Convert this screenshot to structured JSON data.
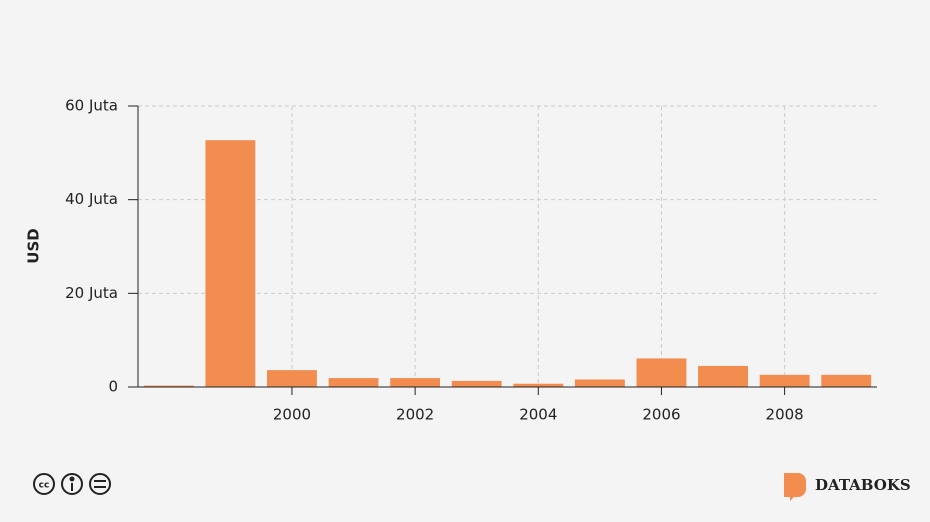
{
  "chart_data": {
    "type": "bar",
    "ylabel": "USD",
    "x": [
      1998,
      1999,
      2000,
      2001,
      2002,
      2003,
      2004,
      2005,
      2006,
      2007,
      2008,
      2009
    ],
    "values": [
      0.3,
      52.7,
      3.6,
      1.9,
      1.9,
      1.3,
      0.7,
      1.6,
      6.1,
      4.5,
      2.6,
      2.6
    ],
    "color": "#f28c4f",
    "xlim": [
      1997.5,
      2009.5
    ],
    "xticks": [
      2000,
      2002,
      2004,
      2006,
      2008
    ],
    "ylim": [
      0,
      60
    ],
    "yticks": [
      0,
      {
        "value": 20,
        "label": "20 Juta"
      },
      {
        "value": 40,
        "label": "40 Juta"
      },
      {
        "value": 60,
        "label": "60 Juta"
      }
    ],
    "grid": true
  },
  "brand": "DATABOKS"
}
